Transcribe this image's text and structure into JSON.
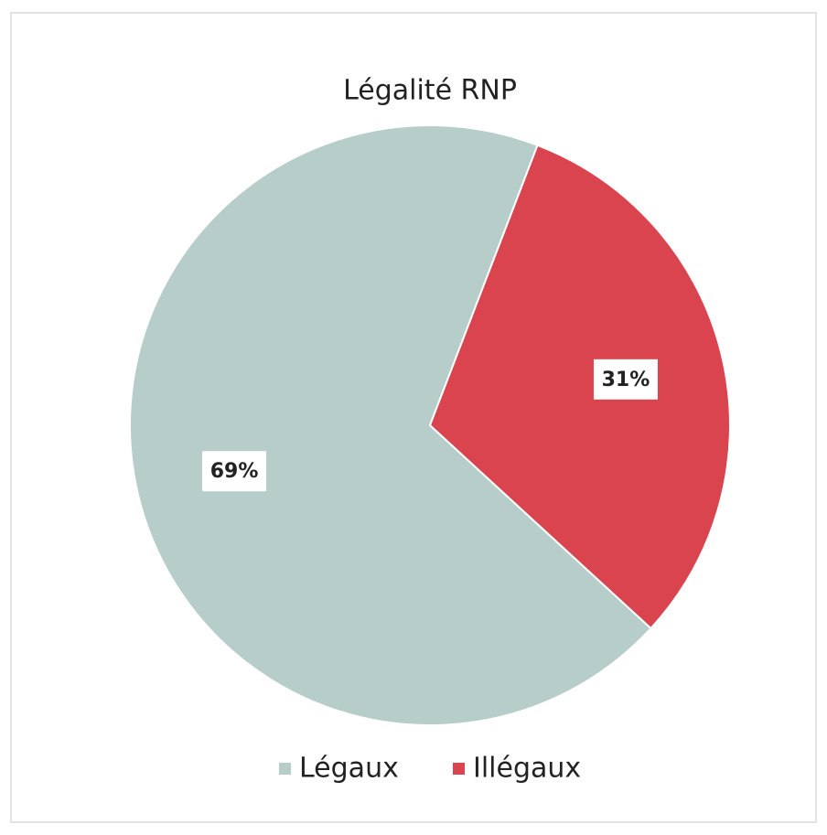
{
  "chart_data": {
    "type": "pie",
    "title": "Légalité RNP",
    "categories": [
      "Légaux",
      "Illégaux"
    ],
    "values": [
      69,
      31
    ],
    "value_labels": [
      "69%",
      "31%"
    ],
    "colors": [
      "#b7cdc9",
      "#d9444f"
    ],
    "legend": "bottom"
  }
}
